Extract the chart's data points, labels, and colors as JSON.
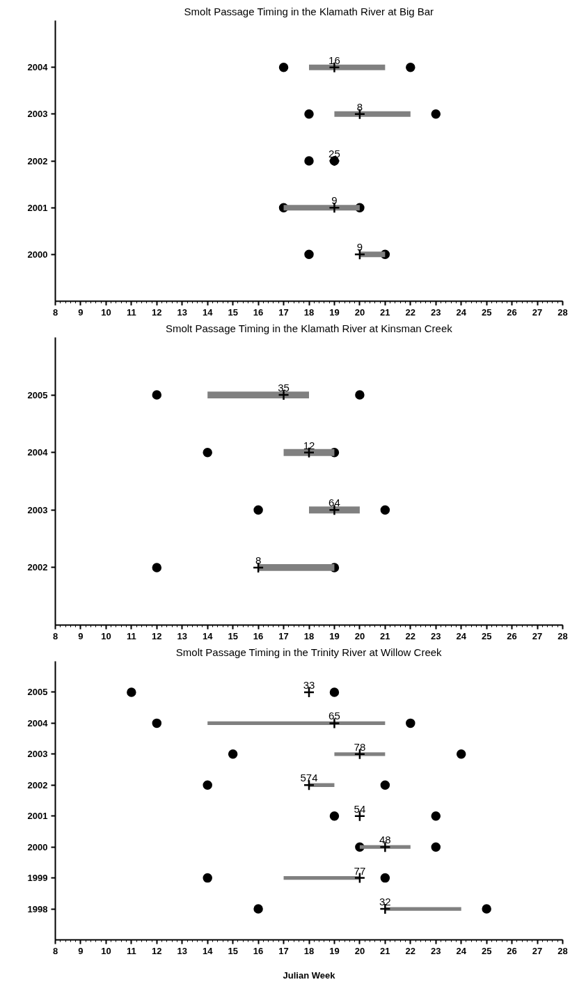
{
  "chart_data": [
    {
      "type": "bar",
      "orientation": "horizontal",
      "title": "Smolt Passage Timing in the Klamath River at Big Bar",
      "categories": [
        "2004",
        "2003",
        "2002",
        "2001",
        "2000"
      ],
      "xlim": [
        8,
        28
      ],
      "xticks": [
        8,
        9,
        10,
        11,
        12,
        13,
        14,
        15,
        16,
        17,
        18,
        19,
        20,
        21,
        22,
        23,
        24,
        25,
        26,
        27,
        28
      ],
      "series": [
        {
          "type": "bar",
          "color": "#808080",
          "base": [
            18,
            19,
            null,
            17,
            20
          ],
          "values": [
            3,
            3,
            null,
            3,
            1
          ]
        },
        {
          "type": "scatter",
          "marker": "circle",
          "color": "#000000",
          "values": [
            17,
            18,
            18,
            17,
            18
          ]
        },
        {
          "type": "scatter",
          "marker": "circle",
          "color": "#000000",
          "values": [
            22,
            23,
            19,
            20,
            21
          ]
        },
        {
          "type": "scatter",
          "marker": "cross",
          "color": "#000000",
          "values": [
            19,
            20,
            19,
            19,
            20
          ]
        }
      ],
      "annotations": [
        {
          "text": "16",
          "x": 19,
          "y": "2004"
        },
        {
          "text": "8",
          "x": 20,
          "y": "2003"
        },
        {
          "text": "25",
          "x": 19,
          "y": "2002"
        },
        {
          "text": "9",
          "x": 19,
          "y": "2001"
        },
        {
          "text": "9",
          "x": 20,
          "y": "2000"
        }
      ]
    },
    {
      "type": "bar",
      "orientation": "horizontal",
      "title": "Smolt Passage Timing in the Klamath River at Kinsman Creek",
      "categories": [
        "2005",
        "2004",
        "2003",
        "2002"
      ],
      "xlim": [
        8,
        28
      ],
      "xticks": [
        8,
        9,
        10,
        11,
        12,
        13,
        14,
        15,
        16,
        17,
        18,
        19,
        20,
        21,
        22,
        23,
        24,
        25,
        26,
        27,
        28
      ],
      "series": [
        {
          "type": "bar",
          "color": "#808080",
          "base": [
            14,
            17,
            18,
            16
          ],
          "values": [
            4,
            2,
            2,
            3
          ]
        },
        {
          "type": "scatter",
          "marker": "circle",
          "color": "#000000",
          "values": [
            12,
            14,
            16,
            12
          ]
        },
        {
          "type": "scatter",
          "marker": "circle",
          "color": "#000000",
          "values": [
            20,
            19,
            21,
            19
          ]
        },
        {
          "type": "scatter",
          "marker": "cross",
          "color": "#000000",
          "values": [
            17,
            18,
            19,
            16
          ]
        }
      ],
      "annotations": [
        {
          "text": "35",
          "x": 17,
          "y": "2005"
        },
        {
          "text": "12",
          "x": 18,
          "y": "2004"
        },
        {
          "text": "64",
          "x": 19,
          "y": "2003"
        },
        {
          "text": "8",
          "x": 16,
          "y": "2002"
        }
      ]
    },
    {
      "type": "bar",
      "orientation": "horizontal",
      "title": "Smolt Passage Timing in the Trinity River at Willow Creek",
      "xlabel": "Julian Week",
      "categories": [
        "2005",
        "2004",
        "2003",
        "2002",
        "2001",
        "2000",
        "1999",
        "1998"
      ],
      "xlim": [
        8,
        28
      ],
      "xticks": [
        8,
        9,
        10,
        11,
        12,
        13,
        14,
        15,
        16,
        17,
        18,
        19,
        20,
        21,
        22,
        23,
        24,
        25,
        26,
        27,
        28
      ],
      "series": [
        {
          "type": "bar",
          "color": "#808080",
          "base": [
            null,
            14,
            19,
            18,
            null,
            20,
            17,
            21
          ],
          "values": [
            null,
            7,
            2,
            1,
            null,
            2,
            3,
            3
          ]
        },
        {
          "type": "scatter",
          "marker": "circle",
          "color": "#000000",
          "values": [
            11,
            12,
            15,
            14,
            19,
            20,
            14,
            16
          ]
        },
        {
          "type": "scatter",
          "marker": "circle",
          "color": "#000000",
          "values": [
            19,
            22,
            24,
            21,
            23,
            23,
            21,
            25
          ]
        },
        {
          "type": "scatter",
          "marker": "cross",
          "color": "#000000",
          "values": [
            18,
            19,
            20,
            18,
            20,
            21,
            20,
            21
          ]
        }
      ],
      "annotations": [
        {
          "text": "33",
          "x": 18,
          "y": "2005"
        },
        {
          "text": "65",
          "x": 19,
          "y": "2004"
        },
        {
          "text": "78",
          "x": 20,
          "y": "2003"
        },
        {
          "text": "574",
          "x": 18,
          "y": "2002"
        },
        {
          "text": "54",
          "x": 20,
          "y": "2001"
        },
        {
          "text": "48",
          "x": 21,
          "y": "2000"
        },
        {
          "text": "77",
          "x": 20,
          "y": "1999"
        },
        {
          "text": "32",
          "x": 21,
          "y": "1998"
        }
      ]
    }
  ]
}
